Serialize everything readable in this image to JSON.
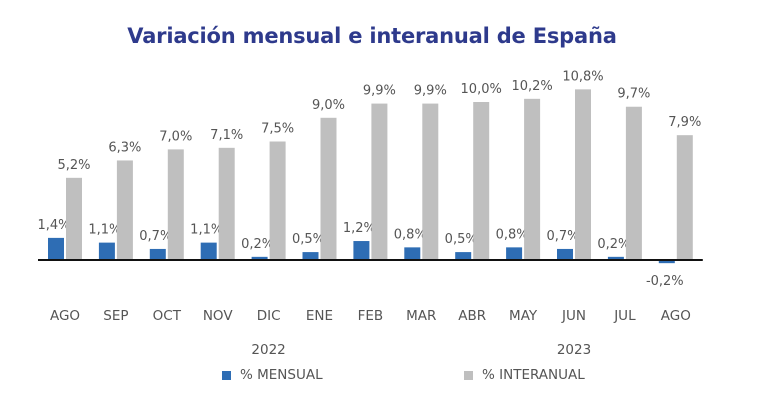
{
  "title": "Variación mensual e interanual de España",
  "chart_data": {
    "type": "bar",
    "title": "Variación mensual e interanual de España",
    "xlabel": "",
    "ylabel": "",
    "categories": [
      "AGO",
      "SEP",
      "OCT",
      "NOV",
      "DIC",
      "ENE",
      "FEB",
      "MAR",
      "ABR",
      "MAY",
      "JUN",
      "JUL",
      "AGO"
    ],
    "year_labels": [
      {
        "label": "2022",
        "category_index": 4
      },
      {
        "label": "2023",
        "category_index": 10
      }
    ],
    "series": [
      {
        "name": "% MENSUAL",
        "color": "#2E6DB4",
        "values": [
          1.4,
          1.1,
          0.7,
          1.1,
          0.2,
          0.5,
          1.2,
          0.8,
          0.5,
          0.8,
          0.7,
          0.2,
          -0.2
        ],
        "labels": [
          "1,4%",
          "1,1%",
          "0,7%",
          "1,1%",
          "0,2%",
          "0,5%",
          "1,2%",
          "0,8%",
          "0,5%",
          "0,8%",
          "0,7%",
          "0,2%",
          "-0,2%"
        ]
      },
      {
        "name": "% INTERANUAL",
        "color": "#BFBFBF",
        "values": [
          5.2,
          6.3,
          7.0,
          7.1,
          7.5,
          9.0,
          9.9,
          9.9,
          10.0,
          10.2,
          10.8,
          9.7,
          7.9
        ],
        "labels": [
          "5,2%",
          "6,3%",
          "7,0%",
          "7,1%",
          "7,5%",
          "9,0%",
          "9,9%",
          "9,9%",
          "10,0%",
          "10,2%",
          "10,8%",
          "9,7%",
          "7,9%"
        ]
      }
    ],
    "ylim": [
      -0.5,
      11.5
    ],
    "grid": false,
    "legend_position": "bottom",
    "axis_color": "#111111"
  }
}
